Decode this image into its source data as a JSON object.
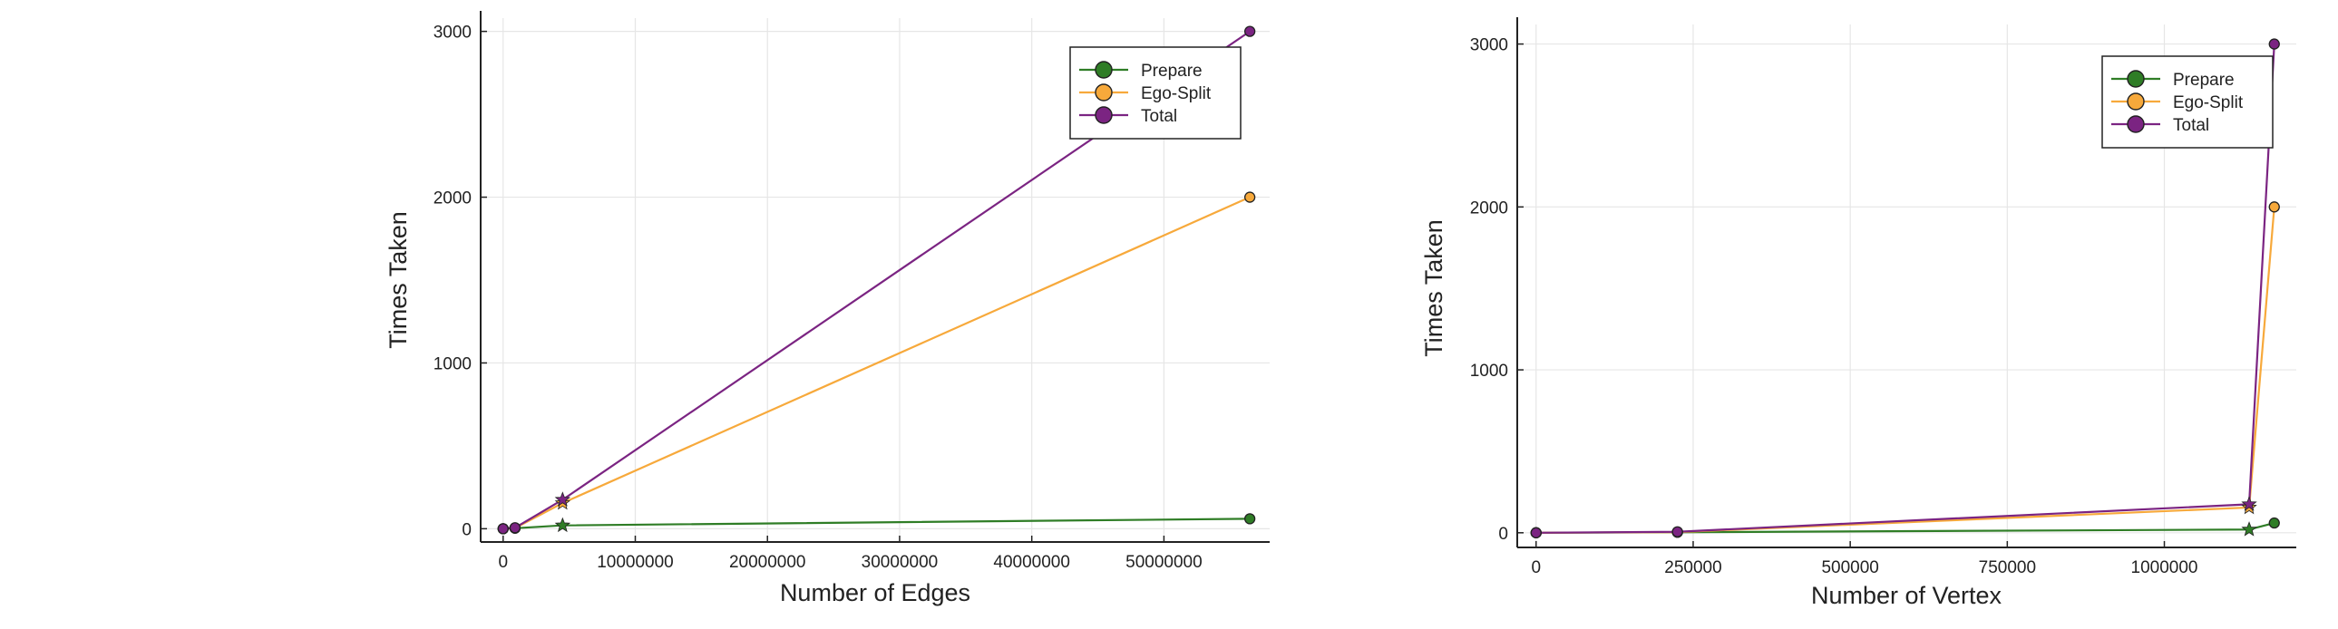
{
  "chart_data": [
    {
      "type": "line",
      "xlabel": "Number of Edges",
      "ylabel": "Times Taken",
      "xlim": [
        -1700000,
        58000000
      ],
      "ylim": [
        -80,
        3080
      ],
      "xticks": [
        0,
        10000000,
        20000000,
        30000000,
        40000000,
        50000000
      ],
      "xtick_labels": [
        "0",
        "10000000",
        "20000000",
        "30000000",
        "40000000",
        "50000000"
      ],
      "yticks": [
        0,
        1000,
        2000,
        3000
      ],
      "ytick_labels": [
        "0",
        "1000",
        "2000",
        "3000"
      ],
      "grid": true,
      "legend_position": "top-right",
      "series": [
        {
          "name": "Prepare",
          "color": "#2f7d26",
          "x": [
            0,
            900000,
            4500000,
            56500000
          ],
          "y": [
            0,
            3,
            20,
            60
          ],
          "markers": [
            "circle",
            "circle",
            "star",
            "circle"
          ]
        },
        {
          "name": "Ego-Split",
          "color": "#f7a93b",
          "x": [
            0,
            900000,
            4500000,
            56500000
          ],
          "y": [
            0,
            4,
            155,
            2000
          ],
          "markers": [
            "circle",
            "circle",
            "star",
            "circle"
          ]
        },
        {
          "name": "Total",
          "color": "#7b2482",
          "x": [
            0,
            900000,
            4500000,
            56500000
          ],
          "y": [
            0,
            6,
            175,
            3000
          ],
          "markers": [
            "circle",
            "circle",
            "star",
            "circle"
          ]
        }
      ]
    },
    {
      "type": "line",
      "xlabel": "Number of Vertex",
      "ylabel": "Times Taken",
      "xlim": [
        -30000,
        1210000
      ],
      "ylim": [
        -90,
        3120
      ],
      "xticks": [
        0,
        250000,
        500000,
        750000,
        1000000
      ],
      "xtick_labels": [
        "0",
        "250000",
        "500000",
        "750000",
        "1000000"
      ],
      "yticks": [
        0,
        1000,
        2000,
        3000
      ],
      "ytick_labels": [
        "0",
        "1000",
        "2000",
        "3000"
      ],
      "grid": true,
      "legend_position": "top-right",
      "series": [
        {
          "name": "Prepare",
          "color": "#2f7d26",
          "x": [
            0,
            225000,
            1135000,
            1175000
          ],
          "y": [
            0,
            3,
            20,
            60
          ],
          "markers": [
            "circle",
            "circle",
            "star",
            "circle"
          ]
        },
        {
          "name": "Ego-Split",
          "color": "#f7a93b",
          "x": [
            0,
            225000,
            1135000,
            1175000
          ],
          "y": [
            0,
            4,
            155,
            2000
          ],
          "markers": [
            "circle",
            "circle",
            "star",
            "circle"
          ]
        },
        {
          "name": "Total",
          "color": "#7b2482",
          "x": [
            0,
            225000,
            1135000,
            1175000
          ],
          "y": [
            0,
            6,
            175,
            3000
          ],
          "markers": [
            "circle",
            "circle",
            "star",
            "circle"
          ]
        }
      ]
    }
  ]
}
